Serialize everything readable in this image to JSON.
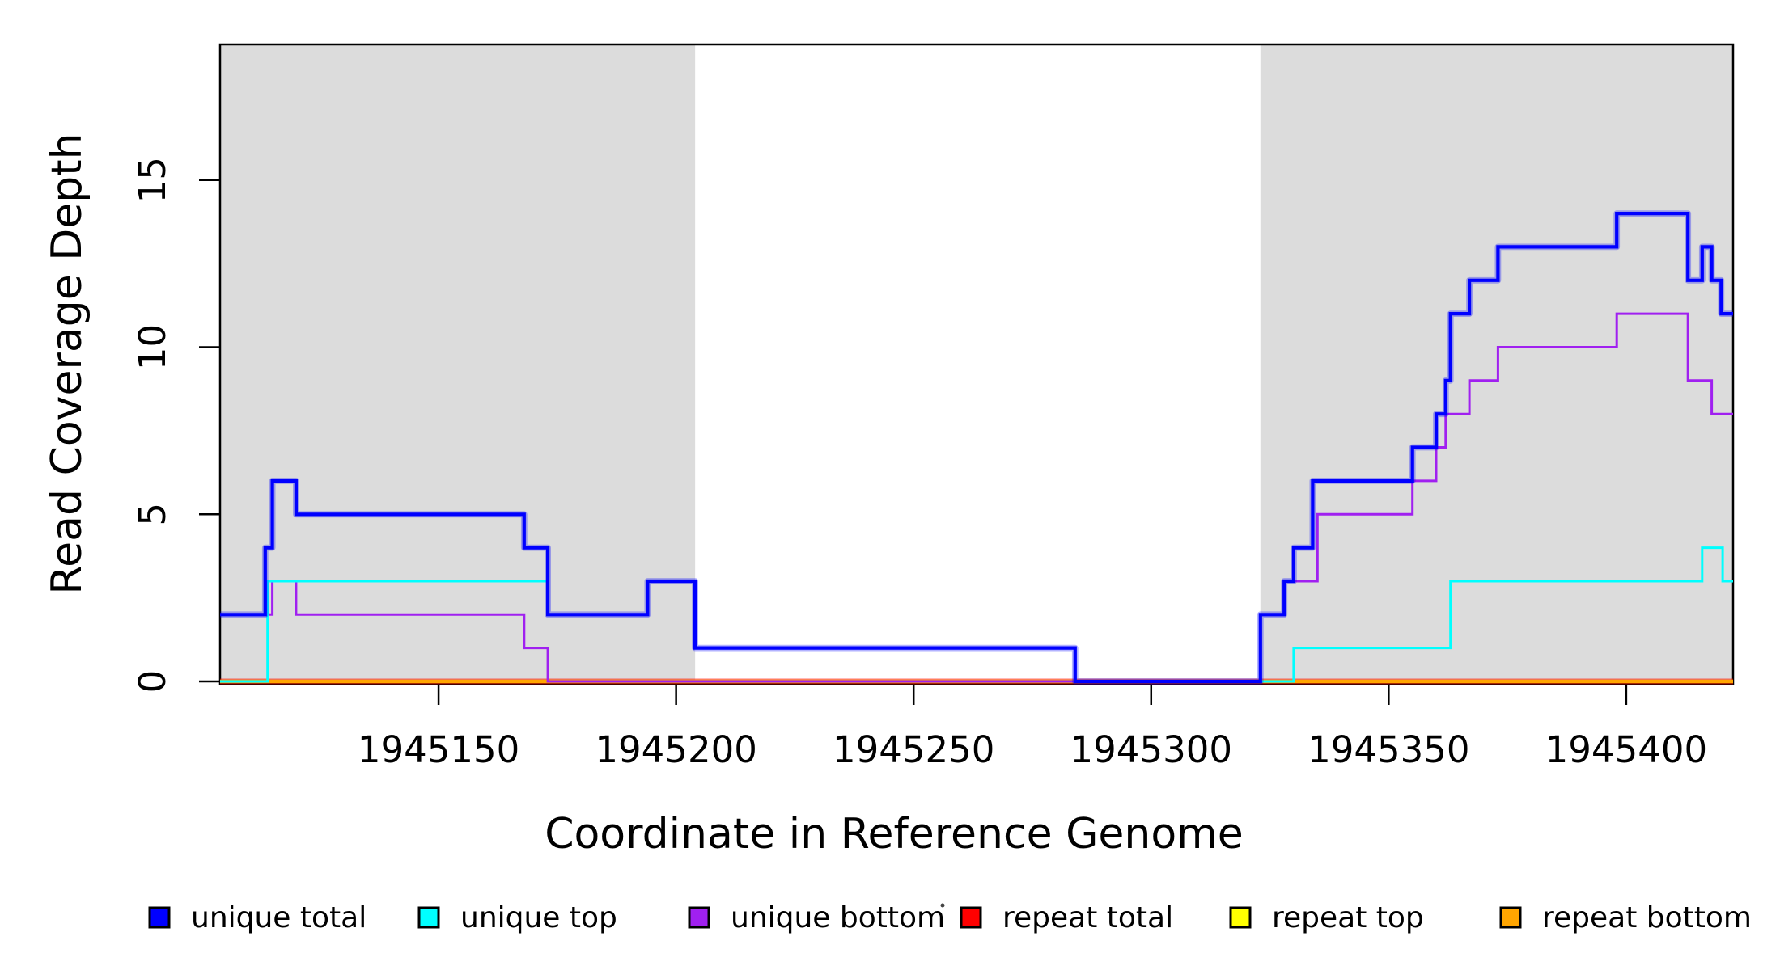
{
  "chart_data": {
    "type": "line",
    "subtype": "step",
    "title": "",
    "xlabel": "Coordinate in Reference Genome",
    "ylabel": "Read Coverage Depth",
    "grid": false,
    "legend_position": "bottom",
    "x_axis": {
      "min": 1945104,
      "max": 1945422.5,
      "ticks": [
        1945150,
        1945200,
        1945250,
        1945300,
        1945350,
        1945400
      ],
      "tick_labels": [
        "1945150",
        "1945200",
        "1945250",
        "1945300",
        "1945350",
        "1945400"
      ]
    },
    "y_axis": {
      "min": 0,
      "max": 19.05,
      "ticks": [
        0,
        5,
        10,
        15
      ],
      "tick_labels": [
        "0",
        "5",
        "10",
        "15"
      ]
    },
    "shade_color": "#DCDCDC",
    "shaded_regions": [
      {
        "x1": 1945104,
        "x2": 1945204
      },
      {
        "x1": 1945323,
        "x2": 1945422.5
      }
    ],
    "series": [
      {
        "id": "unique_total",
        "label": "unique total",
        "color": "#0000FF",
        "width": 4.2,
        "z": 6,
        "halo": true,
        "start_value": 2,
        "steps": [
          [
            1945113.5,
            4
          ],
          [
            1945115,
            6
          ],
          [
            1945120,
            5
          ],
          [
            1945168,
            4
          ],
          [
            1945173,
            2
          ],
          [
            1945194,
            3
          ],
          [
            1945204,
            1
          ],
          [
            1945284,
            0
          ],
          [
            1945323,
            2
          ],
          [
            1945328,
            3
          ],
          [
            1945330,
            4
          ],
          [
            1945334,
            6
          ],
          [
            1945355,
            7
          ],
          [
            1945360,
            8
          ],
          [
            1945362,
            9
          ],
          [
            1945363,
            11
          ],
          [
            1945367,
            12
          ],
          [
            1945373,
            13
          ],
          [
            1945398,
            14
          ],
          [
            1945413,
            12
          ],
          [
            1945416,
            13
          ],
          [
            1945418,
            12
          ],
          [
            1945420,
            11
          ]
        ]
      },
      {
        "id": "unique_top",
        "label": "unique top",
        "color": "#00FFFF",
        "width": 3,
        "z": 5,
        "halo": false,
        "start_value": 0,
        "steps": [
          [
            1945114,
            3
          ],
          [
            1945173,
            2
          ],
          [
            1945194,
            3
          ],
          [
            1945204,
            1
          ],
          [
            1945284,
            0
          ],
          [
            1945330,
            1
          ],
          [
            1945363,
            3
          ],
          [
            1945416,
            4
          ],
          [
            1945420.3,
            3
          ]
        ]
      },
      {
        "id": "unique_bottom",
        "label": "unique bottom",
        "color": "#A020F0",
        "width": 3,
        "z": 4,
        "halo": false,
        "start_value": 2,
        "steps": [
          [
            1945115,
            3
          ],
          [
            1945120,
            2
          ],
          [
            1945168,
            1
          ],
          [
            1945173,
            0
          ],
          [
            1945323,
            2
          ],
          [
            1945328,
            3
          ],
          [
            1945335,
            5
          ],
          [
            1945355,
            6
          ],
          [
            1945360,
            7
          ],
          [
            1945362,
            8
          ],
          [
            1945367,
            9
          ],
          [
            1945373,
            10
          ],
          [
            1945398,
            11
          ],
          [
            1945413,
            9
          ],
          [
            1945418,
            8
          ]
        ]
      },
      {
        "id": "repeat_total",
        "label": "repeat total",
        "color": "#FF0000",
        "width": 7,
        "z": 2,
        "halo": false,
        "opacity": 0.55,
        "start_value": 0,
        "steps": []
      },
      {
        "id": "repeat_top",
        "label": "repeat top",
        "color": "#FFFF00",
        "width": 3,
        "z": 1,
        "halo": false,
        "start_value": 0,
        "steps": []
      },
      {
        "id": "repeat_bottom",
        "label": "repeat bottom",
        "color": "#FFA500",
        "width": 4.5,
        "z": 3,
        "halo": false,
        "start_value": 0,
        "steps": []
      }
    ]
  }
}
